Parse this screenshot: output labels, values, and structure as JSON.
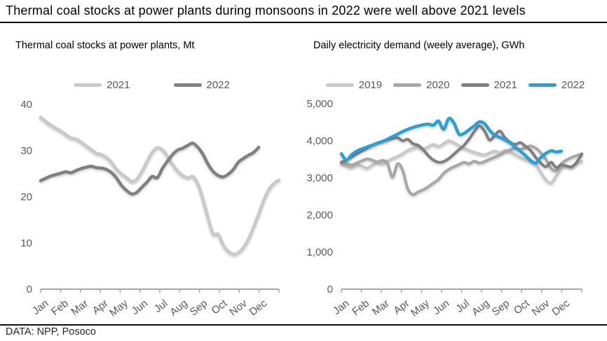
{
  "header": {
    "title": "Thermal coal stocks at power plants during monsoons in 2022 were well above 2021 levels"
  },
  "footer": {
    "source": "DATA: NPP, Posoco"
  },
  "chart_data": [
    {
      "type": "line",
      "title": "Thermal coal stocks at power plants, Mt",
      "ylabel": "Mt",
      "ylim": [
        0,
        40
      ],
      "yticks": [
        0,
        10,
        20,
        30,
        40
      ],
      "ytick_labels": [
        "0",
        "10",
        "20",
        "30",
        "40"
      ],
      "x_labels": [
        "Jan",
        "Feb",
        "Mar",
        "Apr",
        "May",
        "Jun",
        "Jul",
        "Aug",
        "Sep",
        "Oct",
        "Nov",
        "Dec"
      ],
      "weeks_total": 48,
      "grid": false,
      "legend_position": "top",
      "series": [
        {
          "name": "2021",
          "color": "#c9c9c9",
          "values": [
            37.2,
            36.3,
            35.5,
            34.8,
            34.2,
            33.4,
            32.7,
            32.5,
            31.8,
            31.0,
            30.2,
            29.4,
            29.1,
            28.5,
            27.4,
            25.9,
            24.9,
            24.1,
            23.3,
            23.8,
            25.5,
            27.6,
            29.6,
            30.6,
            30.2,
            28.8,
            27.0,
            25.6,
            24.6,
            24.1,
            24.4,
            22.8,
            19.5,
            15.5,
            12.0,
            11.9,
            9.6,
            8.2,
            7.6,
            7.9,
            9.0,
            10.8,
            13.4,
            16.2,
            19.2,
            21.5,
            22.9,
            23.6
          ]
        },
        {
          "name": "2022",
          "color": "#808080",
          "values": [
            23.5,
            24.0,
            24.5,
            24.8,
            25.1,
            25.4,
            25.2,
            25.7,
            26.1,
            26.4,
            26.6,
            26.3,
            26.2,
            25.9,
            25.2,
            24.0,
            22.4,
            21.3,
            20.6,
            21.0,
            22.1,
            23.2,
            24.4,
            24.1,
            26.1,
            27.7,
            29.1,
            30.1,
            30.5,
            31.1,
            31.6,
            30.7,
            29.2,
            27.1,
            25.5,
            24.6,
            24.3,
            24.9,
            25.9,
            27.5,
            28.3,
            29.0,
            29.6,
            30.7
          ]
        }
      ]
    },
    {
      "type": "line",
      "title": "Daily electricity demand (weely average), GWh",
      "ylabel": "GWh",
      "ylim": [
        0,
        5000
      ],
      "yticks": [
        0,
        1000,
        2000,
        3000,
        4000,
        5000
      ],
      "ytick_labels": [
        "0",
        "1,000",
        "2,000",
        "3,000",
        "4,000",
        "5,000"
      ],
      "x_labels": [
        "Jan",
        "Feb",
        "Mar",
        "Apr",
        "May",
        "Jun",
        "Jul",
        "Aug",
        "Sep",
        "Oct",
        "Nov",
        "Dec"
      ],
      "weeks_total": 48,
      "grid": false,
      "legend_position": "top",
      "series": [
        {
          "name": "2019",
          "color": "#c9c9c9",
          "values": [
            3380,
            3320,
            3280,
            3350,
            3320,
            3260,
            3340,
            3420,
            3380,
            3450,
            3520,
            3580,
            3650,
            3740,
            3800,
            3830,
            3780,
            3840,
            3900,
            3850,
            3920,
            4000,
            3950,
            3870,
            3800,
            3740,
            3690,
            3650,
            3620,
            3670,
            3720,
            3680,
            3740,
            3700,
            3630,
            3550,
            3500,
            3440,
            3360,
            3150,
            2950,
            2860,
            3050,
            3250,
            3320,
            3280,
            3380,
            3450
          ]
        },
        {
          "name": "2020",
          "color": "#a7a7a7",
          "values": [
            3420,
            3380,
            3350,
            3400,
            3460,
            3510,
            3480,
            3430,
            3470,
            3400,
            3020,
            3380,
            3200,
            2700,
            2550,
            2620,
            2680,
            2760,
            2860,
            2960,
            3120,
            3230,
            3300,
            3360,
            3420,
            3380,
            3450,
            3400,
            3440,
            3500,
            3560,
            3620,
            3700,
            3760,
            3800,
            3770,
            3820,
            3860,
            3800,
            3680,
            3500,
            3260,
            3200,
            3380,
            3480,
            3550,
            3600,
            3650
          ]
        },
        {
          "name": "2021",
          "color": "#7f7f7f",
          "values": [
            3420,
            3480,
            3560,
            3650,
            3720,
            3800,
            3880,
            3940,
            3980,
            4020,
            4060,
            4080,
            4000,
            4040,
            3920,
            3880,
            3760,
            3600,
            3480,
            3420,
            3440,
            3520,
            3640,
            3760,
            3880,
            4050,
            4250,
            4400,
            4260,
            4020,
            4150,
            4260,
            4080,
            3960,
            3900,
            3950,
            3850,
            3740,
            3550,
            3400,
            3300,
            3420,
            3280,
            3350,
            3320,
            3300,
            3420,
            3640
          ]
        },
        {
          "name": "2022",
          "color": "#29a0d8",
          "values": [
            3650,
            3480,
            3620,
            3720,
            3780,
            3830,
            3880,
            3930,
            3980,
            4040,
            4110,
            4180,
            4250,
            4310,
            4360,
            4400,
            4430,
            4450,
            4420,
            4530,
            4310,
            4600,
            4480,
            4180,
            4200,
            4300,
            4400,
            4510,
            4460,
            4280,
            4150,
            4090,
            4020,
            3950,
            3830,
            3720,
            3600,
            3470,
            3400,
            3550,
            3660,
            3730,
            3700,
            3720
          ]
        }
      ]
    }
  ]
}
